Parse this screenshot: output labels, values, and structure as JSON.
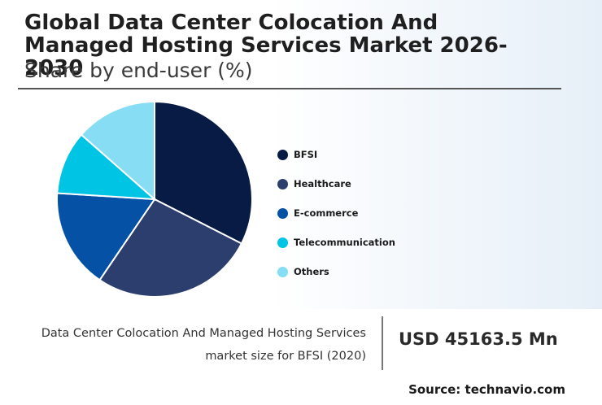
{
  "header": {
    "title": "Global Data Center Colocation And Managed Hosting Services Market 2026-2030",
    "subtitle": "Share by end-user (%)"
  },
  "chart_data": {
    "type": "pie",
    "title": "Global Data Center Colocation And Managed Hosting Services Market 2026-2030",
    "subtitle": "Share by end-user (%)",
    "categories": [
      "BFSI",
      "Healthcare",
      "E-commerce",
      "Telecommunication",
      "Others"
    ],
    "values": [
      32.5,
      27.0,
      16.5,
      10.5,
      13.5
    ],
    "colors": [
      "#081b45",
      "#2c3e6e",
      "#0551a5",
      "#00c4e4",
      "#86ddf4"
    ],
    "legend_position": "right"
  },
  "stat": {
    "description_line1": "Data Center Colocation And Managed Hosting Services",
    "description_line2": "market size for BFSI (2020)",
    "value": "USD 45163.5 Mn"
  },
  "footer": {
    "source": "Source: technavio.com"
  }
}
